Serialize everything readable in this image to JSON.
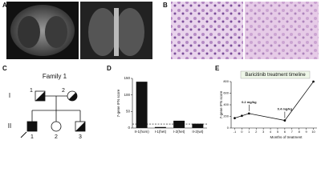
{
  "panel_labels": [
    "A",
    "B",
    "C",
    "D",
    "E"
  ],
  "pedigree": {
    "title": "Family 1",
    "generations": [
      "I",
      "II"
    ],
    "members": [
      {
        "gen": "I",
        "label": "1",
        "sex": "male",
        "status": "carrier"
      },
      {
        "gen": "I",
        "label": "2",
        "sex": "female",
        "status": "carrier"
      },
      {
        "gen": "II",
        "label": "1",
        "sex": "male",
        "status": "affected"
      },
      {
        "gen": "II",
        "label": "2",
        "sex": "female",
        "status": "unaffected"
      },
      {
        "gen": "II",
        "label": "3",
        "sex": "male",
        "status": "carrier"
      }
    ]
  },
  "chart_data": [
    {
      "type": "bar",
      "ylabel": "7-gene IFN score",
      "categories": [
        "II-1(hom)",
        "I-1(het)",
        "I-2(het)",
        "II-2(wt)"
      ],
      "values": [
        140,
        3,
        22,
        13
      ],
      "color": "#111111",
      "ylim": [
        0,
        150
      ],
      "yticks": [
        0,
        50,
        100,
        150
      ],
      "reference_line": 12
    },
    {
      "type": "line",
      "title": "Baricitinib treatment timeline",
      "xlabel": "Months of treatment",
      "ylabel": "7-gene IFN score",
      "x": [
        -1,
        0,
        1,
        6,
        10
      ],
      "values": [
        170,
        210,
        250,
        130,
        800
      ],
      "color": "#111111",
      "xlim": [
        -1.5,
        10.5
      ],
      "xticks": [
        -1,
        0,
        1,
        2,
        3,
        4,
        5,
        6,
        7,
        8,
        9,
        10
      ],
      "ylim": [
        0,
        800
      ],
      "yticks": [
        0,
        200,
        400,
        600,
        800
      ],
      "annotations": [
        {
          "text": "0.2 mg/kg",
          "x": 1
        },
        {
          "text": "0.4 mg/kg",
          "x": 6
        }
      ]
    }
  ]
}
